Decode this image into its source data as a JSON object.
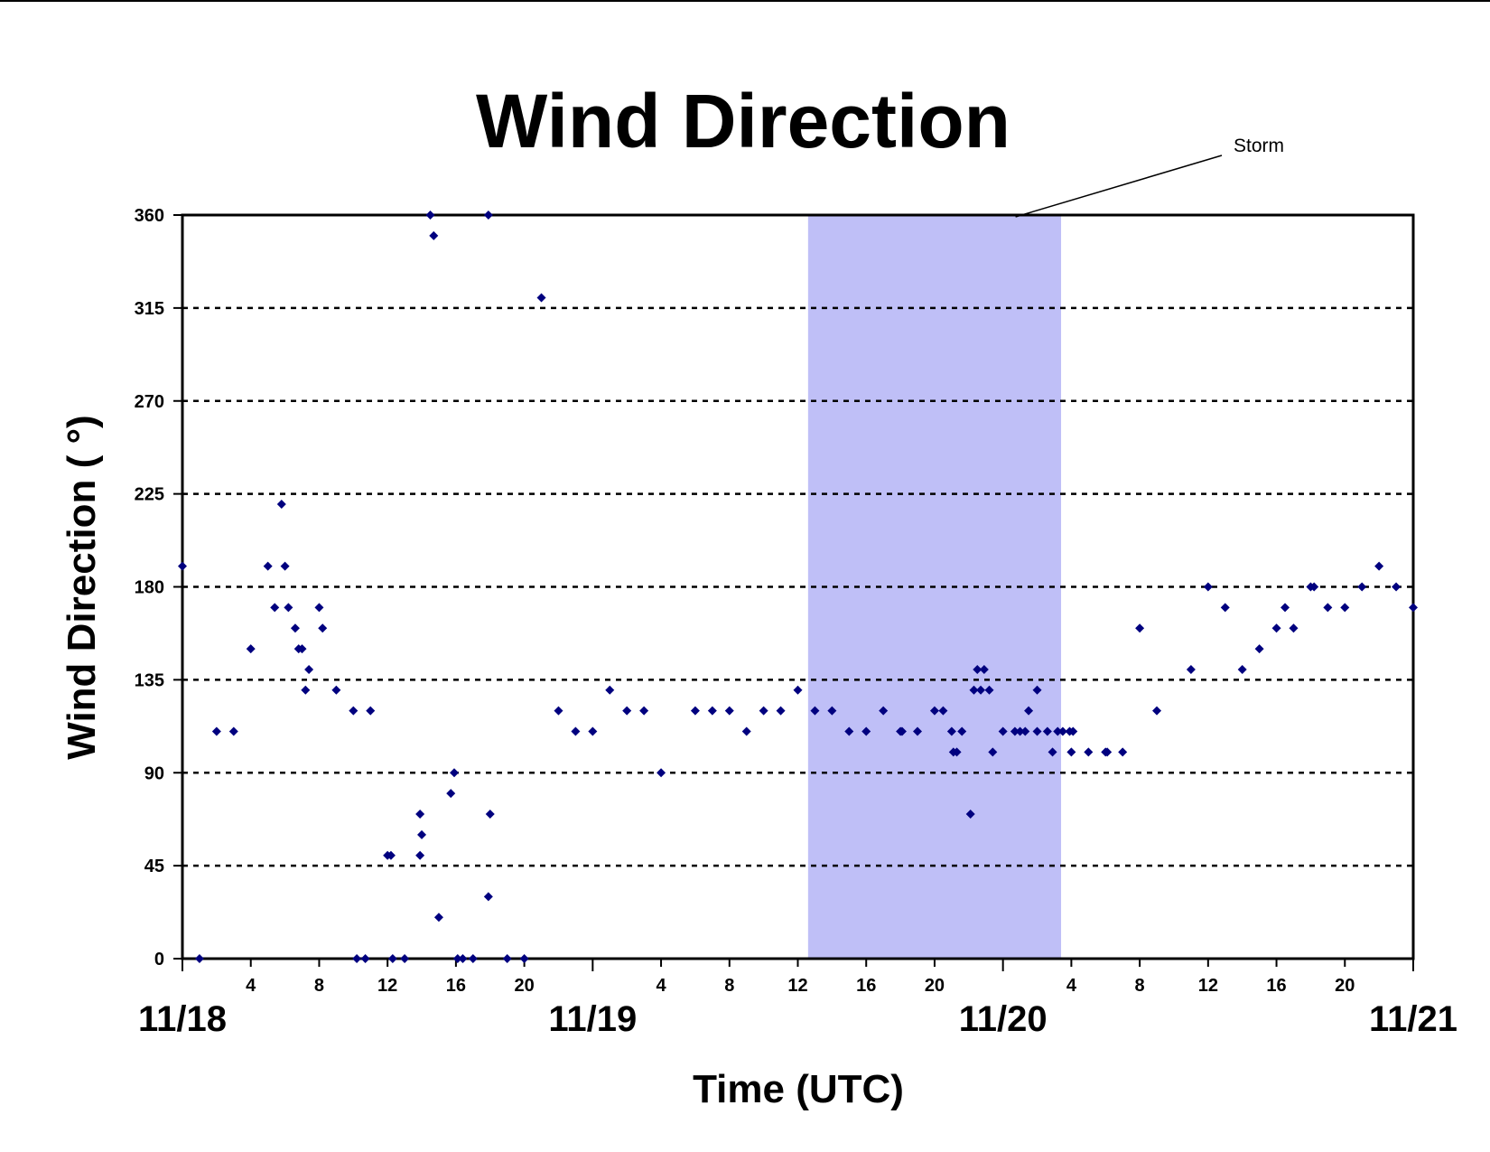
{
  "chart_data": {
    "type": "scatter",
    "title": "Wind Direction",
    "xlabel": "Time (UTC)",
    "ylabel": "Wind Direction ( °)",
    "x_unit": "hours (UTC) from 11/18 00:00",
    "xlim": [
      0,
      72
    ],
    "ylim": [
      0,
      360
    ],
    "yticks": [
      0,
      45,
      90,
      135,
      180,
      225,
      270,
      315,
      360
    ],
    "grid": "horizontal dotted",
    "legend": "none",
    "marker_color": "#00007f",
    "x_hour_tick_labels": [
      {
        "x": 4,
        "label": "4"
      },
      {
        "x": 8,
        "label": "8"
      },
      {
        "x": 12,
        "label": "12"
      },
      {
        "x": 16,
        "label": "16"
      },
      {
        "x": 20,
        "label": "20"
      },
      {
        "x": 28,
        "label": "4"
      },
      {
        "x": 32,
        "label": "8"
      },
      {
        "x": 36,
        "label": "12"
      },
      {
        "x": 40,
        "label": "16"
      },
      {
        "x": 44,
        "label": "20"
      },
      {
        "x": 52,
        "label": "4"
      },
      {
        "x": 56,
        "label": "8"
      },
      {
        "x": 60,
        "label": "12"
      },
      {
        "x": 64,
        "label": "16"
      },
      {
        "x": 68,
        "label": "20"
      }
    ],
    "x_date_labels": [
      {
        "x": 0,
        "label": "11/18"
      },
      {
        "x": 24,
        "label": "11/19"
      },
      {
        "x": 48,
        "label": "11/20"
      },
      {
        "x": 72,
        "label": "11/21"
      }
    ],
    "shaded_regions": [
      {
        "x_start": 36.6,
        "x_end": 51.4,
        "label": "Storm",
        "color": "#bfbff7"
      }
    ],
    "series": [
      {
        "points": [
          [
            0,
            190
          ],
          [
            1,
            0
          ],
          [
            2,
            110
          ],
          [
            3,
            110
          ],
          [
            4,
            150
          ],
          [
            5,
            190
          ],
          [
            5.4,
            170
          ],
          [
            5.8,
            220
          ],
          [
            6,
            190
          ],
          [
            6.2,
            170
          ],
          [
            6.6,
            160
          ],
          [
            6.8,
            150
          ],
          [
            7,
            150
          ],
          [
            7.2,
            130
          ],
          [
            7.4,
            140
          ],
          [
            8,
            170
          ],
          [
            8.2,
            160
          ],
          [
            9,
            130
          ],
          [
            10,
            120
          ],
          [
            10.2,
            0
          ],
          [
            10.7,
            0
          ],
          [
            11,
            120
          ],
          [
            12,
            50
          ],
          [
            12.2,
            50
          ],
          [
            12.3,
            0
          ],
          [
            13,
            0
          ],
          [
            13.9,
            70
          ],
          [
            14,
            60
          ],
          [
            13.9,
            50
          ],
          [
            14.5,
            360
          ],
          [
            14.7,
            350
          ],
          [
            15,
            20
          ],
          [
            15.7,
            80
          ],
          [
            15.9,
            90
          ],
          [
            16.1,
            0
          ],
          [
            16.4,
            0
          ],
          [
            17,
            0
          ],
          [
            17.9,
            360
          ],
          [
            18,
            70
          ],
          [
            17.9,
            30
          ],
          [
            19,
            0
          ],
          [
            20,
            0
          ],
          [
            21,
            320
          ],
          [
            22,
            120
          ],
          [
            23,
            110
          ],
          [
            24,
            110
          ],
          [
            25,
            130
          ],
          [
            26,
            120
          ],
          [
            27,
            120
          ],
          [
            28,
            90
          ],
          [
            30,
            120
          ],
          [
            31,
            120
          ],
          [
            32,
            120
          ],
          [
            33,
            110
          ],
          [
            34,
            120
          ],
          [
            35,
            120
          ],
          [
            36,
            130
          ],
          [
            37,
            120
          ],
          [
            38,
            120
          ],
          [
            39,
            110
          ],
          [
            40,
            110
          ],
          [
            41,
            120
          ],
          [
            42,
            110
          ],
          [
            42.1,
            110
          ],
          [
            43,
            110
          ],
          [
            44,
            120
          ],
          [
            44.5,
            120
          ],
          [
            45,
            110
          ],
          [
            45.1,
            100
          ],
          [
            45.3,
            100
          ],
          [
            45.6,
            110
          ],
          [
            46.1,
            70
          ],
          [
            46.3,
            130
          ],
          [
            46.5,
            140
          ],
          [
            46.7,
            130
          ],
          [
            46.9,
            140
          ],
          [
            47.2,
            130
          ],
          [
            47.4,
            100
          ],
          [
            48,
            110
          ],
          [
            48.7,
            110
          ],
          [
            49,
            110
          ],
          [
            49.3,
            110
          ],
          [
            49.5,
            120
          ],
          [
            50,
            130
          ],
          [
            50,
            110
          ],
          [
            50.6,
            110
          ],
          [
            50.9,
            100
          ],
          [
            51.2,
            110
          ],
          [
            51.5,
            110
          ],
          [
            51.9,
            110
          ],
          [
            52,
            100
          ],
          [
            52.1,
            110
          ],
          [
            53,
            100
          ],
          [
            54,
            100
          ],
          [
            54.1,
            100
          ],
          [
            55,
            100
          ],
          [
            56,
            160
          ],
          [
            57,
            120
          ],
          [
            59,
            140
          ],
          [
            60,
            180
          ],
          [
            61,
            170
          ],
          [
            62,
            140
          ],
          [
            63,
            150
          ],
          [
            64,
            160
          ],
          [
            64.5,
            170
          ],
          [
            65,
            160
          ],
          [
            66,
            180
          ],
          [
            66.2,
            180
          ],
          [
            67,
            170
          ],
          [
            68,
            170
          ],
          [
            69,
            180
          ],
          [
            70,
            190
          ],
          [
            71,
            180
          ],
          [
            72,
            170
          ]
        ]
      }
    ]
  }
}
